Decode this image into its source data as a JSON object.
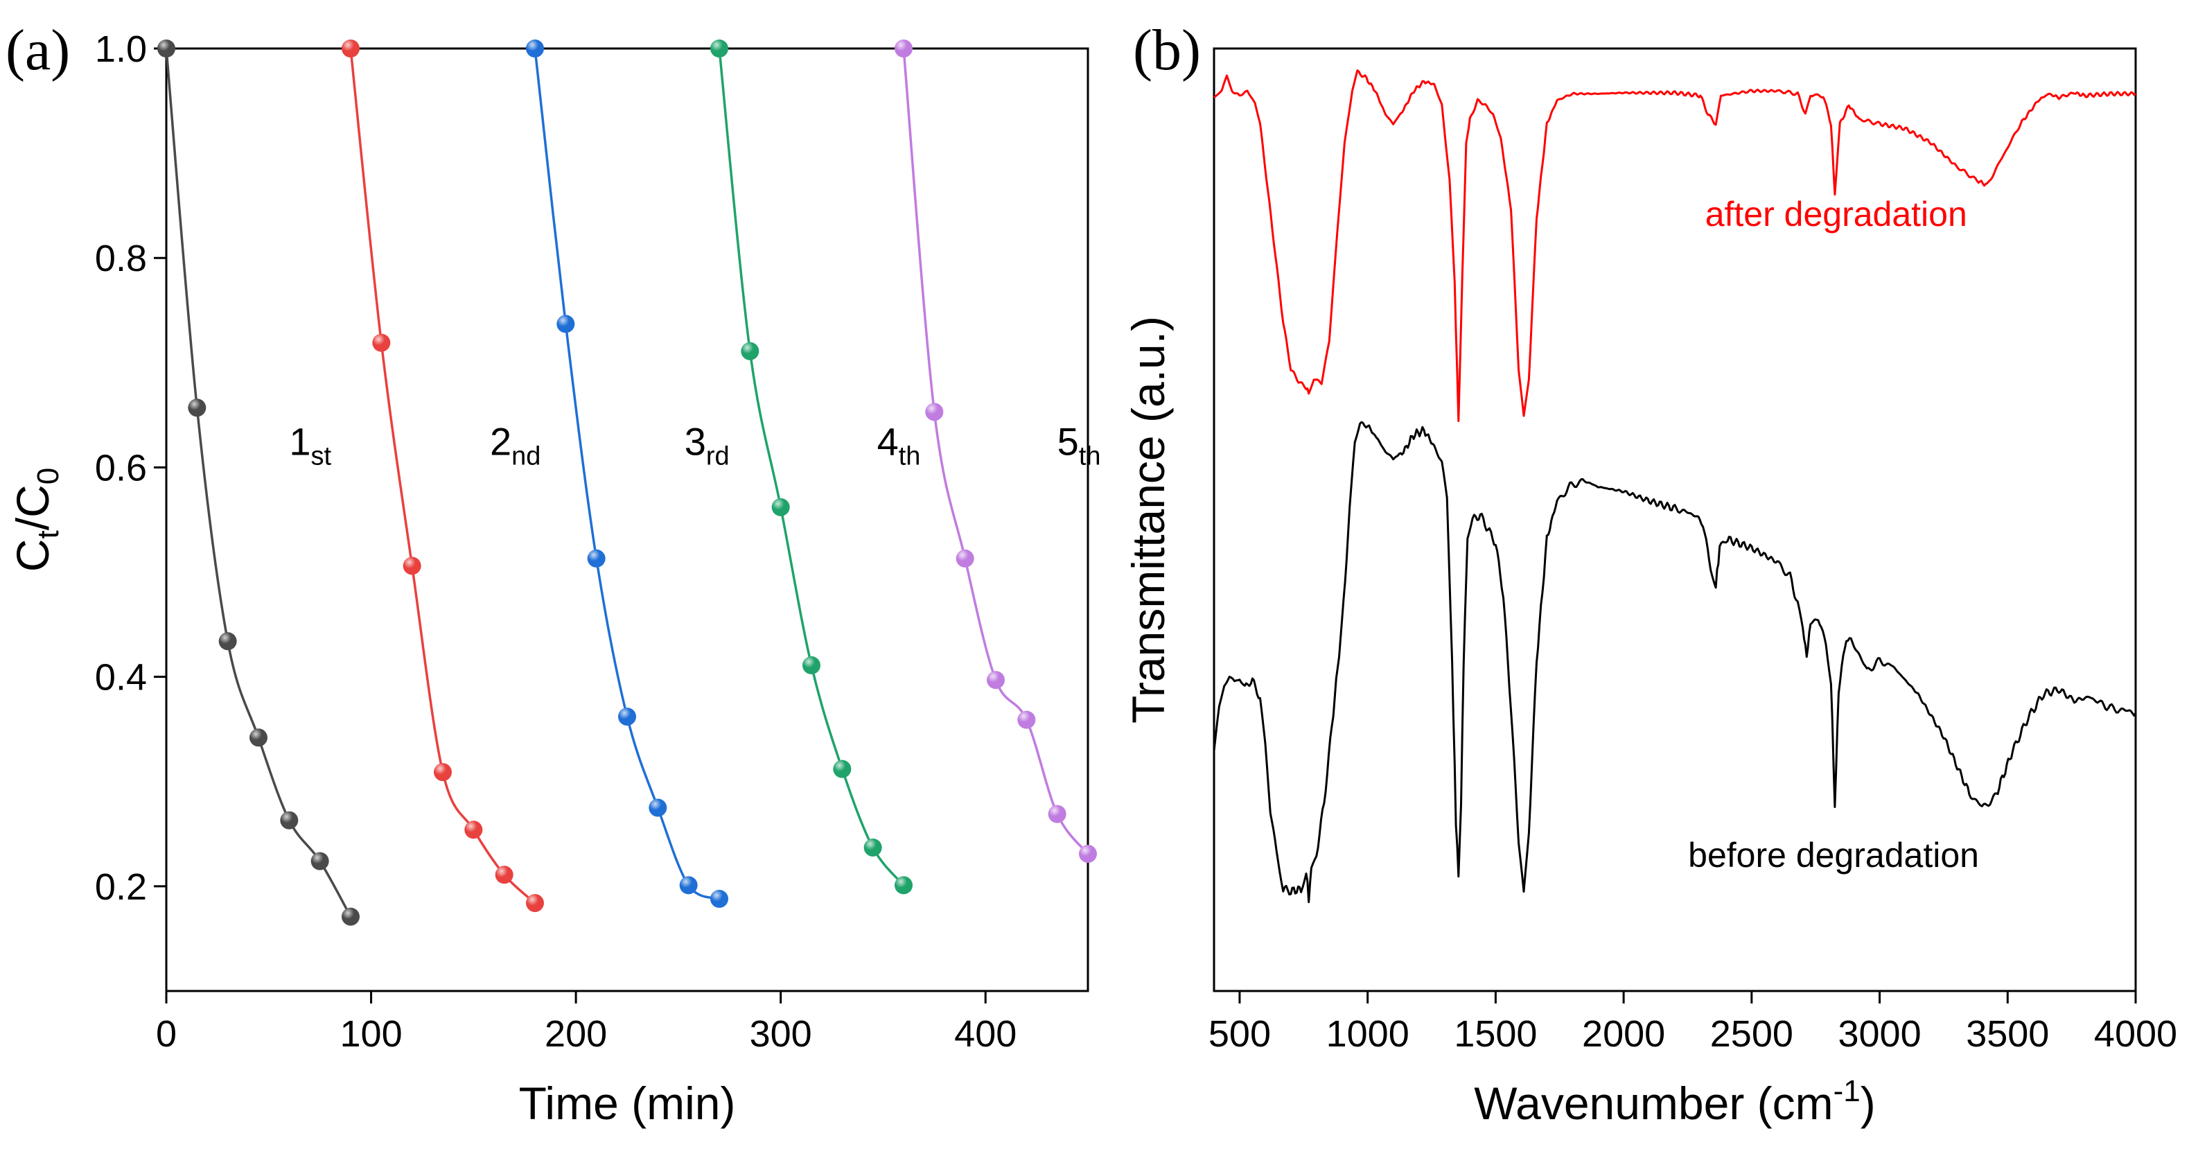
{
  "chart_data": [
    {
      "panel_label": "(a)",
      "type": "line",
      "xlabel": "Time (min)",
      "ylabel": {
        "base": "C",
        "sub1": "t",
        "mid": "/C",
        "sub2": "0"
      },
      "xlim": [
        0,
        450
      ],
      "ylim": [
        0.1,
        1.0
      ],
      "xticks": [
        0,
        100,
        200,
        300,
        400
      ],
      "yticks": [
        0.2,
        0.4,
        0.6,
        0.8,
        1.0
      ],
      "xtick_labels": [
        "0",
        "100",
        "200",
        "300",
        "400"
      ],
      "ytick_labels": [
        "0.2",
        "0.4",
        "0.6",
        "0.8",
        "1.0"
      ],
      "series": [
        {
          "name": "1st",
          "label_main": "1",
          "label_sub": "st",
          "color": "#4a4a4a",
          "x": [
            0,
            15,
            30,
            45,
            60,
            75,
            90
          ],
          "y": [
            1.0,
            0.657,
            0.434,
            0.342,
            0.263,
            0.224,
            0.171
          ],
          "label_at": [
            60,
            0.625
          ]
        },
        {
          "name": "2nd",
          "label_main": "2",
          "label_sub": "nd",
          "color": "#e8413e",
          "x": [
            90,
            105,
            120,
            135,
            150,
            165,
            180
          ],
          "y": [
            1.0,
            0.719,
            0.506,
            0.309,
            0.254,
            0.211,
            0.184
          ],
          "label_at": [
            158,
            0.625
          ]
        },
        {
          "name": "3rd",
          "label_main": "3",
          "label_sub": "rd",
          "color": "#1f6fd6",
          "x": [
            180,
            195,
            210,
            225,
            240,
            255,
            270
          ],
          "y": [
            1.0,
            0.737,
            0.513,
            0.362,
            0.275,
            0.201,
            0.188
          ],
          "label_at": [
            253,
            0.625
          ]
        },
        {
          "name": "4th",
          "label_main": "4",
          "label_sub": "th",
          "color": "#1fa36a",
          "x": [
            270,
            285,
            300,
            315,
            330,
            345,
            360
          ],
          "y": [
            1.0,
            0.711,
            0.562,
            0.411,
            0.312,
            0.237,
            0.201
          ],
          "label_at": [
            347,
            0.625
          ]
        },
        {
          "name": "5th",
          "label_main": "5",
          "label_sub": "th",
          "color": "#c07ce0",
          "x": [
            360,
            375,
            390,
            405,
            420,
            435,
            450
          ],
          "y": [
            1.0,
            0.653,
            0.513,
            0.397,
            0.359,
            0.269,
            0.231
          ],
          "label_at": [
            435,
            0.625
          ]
        }
      ]
    },
    {
      "panel_label": "(b)",
      "type": "line",
      "xlabel": {
        "main": "Wavenumber (cm",
        "sup": "-1",
        "end": ")"
      },
      "ylabel": "Transmittance (a.u.)",
      "xlim": [
        400,
        4000
      ],
      "ylim": [
        0,
        10
      ],
      "xticks": [
        500,
        1000,
        1500,
        2000,
        2500,
        3000,
        3500,
        4000
      ],
      "xtick_labels": [
        "500",
        "1000",
        "1500",
        "2000",
        "2500",
        "3000",
        "3500",
        "4000"
      ],
      "series": [
        {
          "name": "after degradation",
          "color": "#ff0000",
          "label_at": [
            2830,
            8.25
          ],
          "points": [
            [
              400,
              9.48
            ],
            [
              430,
              9.55
            ],
            [
              450,
              9.7
            ],
            [
              470,
              9.55
            ],
            [
              500,
              9.5
            ],
            [
              530,
              9.55
            ],
            [
              560,
              9.42
            ],
            [
              580,
              9.2
            ],
            [
              610,
              8.5
            ],
            [
              640,
              7.8
            ],
            [
              670,
              7.1
            ],
            [
              700,
              6.6
            ],
            [
              730,
              6.47
            ],
            [
              760,
              6.4
            ],
            [
              770,
              6.35
            ],
            [
              790,
              6.5
            ],
            [
              820,
              6.45
            ],
            [
              850,
              6.9
            ],
            [
              880,
              8.0
            ],
            [
              910,
              9.0
            ],
            [
              940,
              9.55
            ],
            [
              960,
              9.75
            ],
            [
              990,
              9.7
            ],
            [
              1030,
              9.55
            ],
            [
              1070,
              9.3
            ],
            [
              1100,
              9.2
            ],
            [
              1140,
              9.35
            ],
            [
              1180,
              9.55
            ],
            [
              1220,
              9.65
            ],
            [
              1260,
              9.62
            ],
            [
              1290,
              9.4
            ],
            [
              1320,
              8.6
            ],
            [
              1340,
              7.5
            ],
            [
              1355,
              6.05
            ],
            [
              1370,
              7.6
            ],
            [
              1385,
              9.0
            ],
            [
              1400,
              9.25
            ],
            [
              1430,
              9.45
            ],
            [
              1460,
              9.4
            ],
            [
              1490,
              9.3
            ],
            [
              1520,
              9.05
            ],
            [
              1560,
              8.3
            ],
            [
              1590,
              6.6
            ],
            [
              1610,
              6.1
            ],
            [
              1630,
              6.5
            ],
            [
              1660,
              8.2
            ],
            [
              1700,
              9.2
            ],
            [
              1740,
              9.45
            ],
            [
              1800,
              9.52
            ],
            [
              1900,
              9.52
            ],
            [
              2000,
              9.53
            ],
            [
              2100,
              9.53
            ],
            [
              2200,
              9.53
            ],
            [
              2300,
              9.5
            ],
            [
              2330,
              9.3
            ],
            [
              2360,
              9.2
            ],
            [
              2380,
              9.5
            ],
            [
              2500,
              9.55
            ],
            [
              2600,
              9.55
            ],
            [
              2680,
              9.52
            ],
            [
              2710,
              9.3
            ],
            [
              2730,
              9.5
            ],
            [
              2780,
              9.5
            ],
            [
              2810,
              9.2
            ],
            [
              2825,
              8.45
            ],
            [
              2845,
              9.2
            ],
            [
              2880,
              9.4
            ],
            [
              2920,
              9.25
            ],
            [
              3000,
              9.2
            ],
            [
              3100,
              9.15
            ],
            [
              3200,
              9.0
            ],
            [
              3300,
              8.75
            ],
            [
              3380,
              8.6
            ],
            [
              3420,
              8.55
            ],
            [
              3470,
              8.8
            ],
            [
              3550,
              9.2
            ],
            [
              3620,
              9.45
            ],
            [
              3660,
              9.52
            ],
            [
              3700,
              9.48
            ],
            [
              3760,
              9.53
            ],
            [
              3800,
              9.5
            ],
            [
              3900,
              9.52
            ],
            [
              4000,
              9.52
            ]
          ]
        },
        {
          "name": "before degradation",
          "color": "#000000",
          "label_at": [
            2820,
            1.45
          ],
          "points": [
            [
              400,
              2.55
            ],
            [
              420,
              3.0
            ],
            [
              440,
              3.25
            ],
            [
              460,
              3.32
            ],
            [
              480,
              3.25
            ],
            [
              500,
              3.3
            ],
            [
              520,
              3.22
            ],
            [
              550,
              3.3
            ],
            [
              580,
              3.1
            ],
            [
              600,
              2.6
            ],
            [
              620,
              1.9
            ],
            [
              650,
              1.4
            ],
            [
              670,
              1.08
            ],
            [
              700,
              1.06
            ],
            [
              740,
              1.08
            ],
            [
              760,
              1.28
            ],
            [
              770,
              0.97
            ],
            [
              780,
              1.3
            ],
            [
              800,
              1.45
            ],
            [
              830,
              2.0
            ],
            [
              860,
              2.8
            ],
            [
              900,
              3.9
            ],
            [
              930,
              5.1
            ],
            [
              950,
              5.8
            ],
            [
              970,
              6.02
            ],
            [
              1000,
              6.0
            ],
            [
              1040,
              5.85
            ],
            [
              1070,
              5.72
            ],
            [
              1100,
              5.65
            ],
            [
              1140,
              5.72
            ],
            [
              1180,
              5.9
            ],
            [
              1220,
              5.95
            ],
            [
              1260,
              5.78
            ],
            [
              1290,
              5.6
            ],
            [
              1310,
              5.2
            ],
            [
              1330,
              3.5
            ],
            [
              1345,
              1.8
            ],
            [
              1355,
              1.22
            ],
            [
              1365,
              2.0
            ],
            [
              1375,
              3.5
            ],
            [
              1390,
              4.8
            ],
            [
              1410,
              5.0
            ],
            [
              1440,
              5.05
            ],
            [
              1470,
              4.9
            ],
            [
              1500,
              4.75
            ],
            [
              1530,
              4.2
            ],
            [
              1560,
              3.0
            ],
            [
              1590,
              1.6
            ],
            [
              1610,
              1.05
            ],
            [
              1630,
              1.7
            ],
            [
              1660,
              3.5
            ],
            [
              1700,
              4.8
            ],
            [
              1740,
              5.2
            ],
            [
              1790,
              5.35
            ],
            [
              1840,
              5.42
            ],
            [
              1900,
              5.35
            ],
            [
              2000,
              5.3
            ],
            [
              2100,
              5.2
            ],
            [
              2200,
              5.12
            ],
            [
              2280,
              5.05
            ],
            [
              2310,
              4.95
            ],
            [
              2340,
              4.5
            ],
            [
              2360,
              4.3
            ],
            [
              2375,
              4.7
            ],
            [
              2400,
              4.8
            ],
            [
              2500,
              4.7
            ],
            [
              2600,
              4.55
            ],
            [
              2650,
              4.4
            ],
            [
              2680,
              4.1
            ],
            [
              2700,
              3.85
            ],
            [
              2715,
              3.55
            ],
            [
              2730,
              3.9
            ],
            [
              2760,
              3.95
            ],
            [
              2790,
              3.7
            ],
            [
              2810,
              3.3
            ],
            [
              2825,
              1.95
            ],
            [
              2840,
              3.2
            ],
            [
              2870,
              3.75
            ],
            [
              2900,
              3.68
            ],
            [
              2950,
              3.4
            ],
            [
              3000,
              3.5
            ],
            [
              3050,
              3.45
            ],
            [
              3150,
              3.15
            ],
            [
              3250,
              2.7
            ],
            [
              3350,
              2.1
            ],
            [
              3400,
              1.95
            ],
            [
              3450,
              2.05
            ],
            [
              3520,
              2.55
            ],
            [
              3580,
              2.9
            ],
            [
              3640,
              3.15
            ],
            [
              3700,
              3.2
            ],
            [
              3760,
              3.08
            ],
            [
              3820,
              3.12
            ],
            [
              3900,
              3.0
            ],
            [
              3950,
              2.98
            ],
            [
              4000,
              2.95
            ]
          ]
        }
      ]
    }
  ]
}
